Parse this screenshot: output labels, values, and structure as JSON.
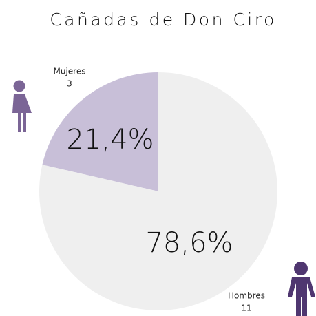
{
  "chart_data": {
    "type": "pie",
    "title": "Cañadas de Don Ciro",
    "categories": [
      "Mujeres",
      "Hombres"
    ],
    "values": [
      21.4,
      78.6
    ],
    "value_labels": [
      "21,4%",
      "78,6%"
    ],
    "counts": [
      3,
      11
    ],
    "colors": [
      "#c8bfd8",
      "#efefef"
    ]
  }
}
